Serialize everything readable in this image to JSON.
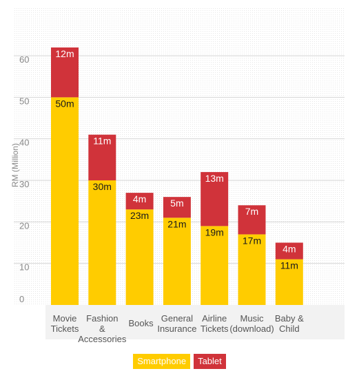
{
  "chart_data": {
    "type": "bar",
    "stacked": true,
    "ylabel": "RM (Million)",
    "ylim": [
      0,
      65
    ],
    "yticks": [
      0,
      10,
      20,
      30,
      40,
      50,
      60
    ],
    "grid": true,
    "categories": [
      [
        "Movie",
        "Tickets"
      ],
      [
        "Fashion",
        "&",
        "Accessories"
      ],
      [
        "Books"
      ],
      [
        "General",
        "Insurance"
      ],
      [
        "Airline",
        "Tickets"
      ],
      [
        "Music",
        "(download)"
      ],
      [
        "Baby &",
        "Child"
      ]
    ],
    "series": [
      {
        "name": "Smartphone",
        "color": "#ffcc00",
        "values": [
          50,
          30,
          23,
          21,
          19,
          17,
          11
        ],
        "labels": [
          "50m",
          "30m",
          "23m",
          "21m",
          "19m",
          "17m",
          "11m"
        ]
      },
      {
        "name": "Tablet",
        "color": "#d0333a",
        "values": [
          12,
          11,
          4,
          5,
          13,
          7,
          4
        ],
        "labels": [
          "12m",
          "11m",
          "4m",
          "5m",
          "13m",
          "7m",
          "4m"
        ]
      }
    ],
    "legend_position": "bottom-center"
  }
}
